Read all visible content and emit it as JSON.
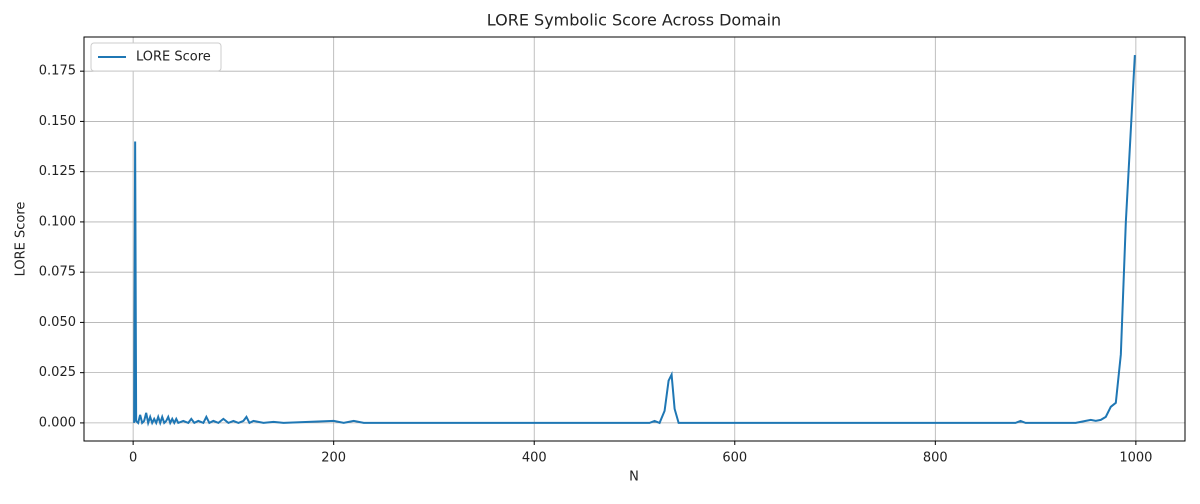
{
  "chart_data": {
    "type": "line",
    "title": "LORE Symbolic Score Across Domain",
    "x_label": "N",
    "y_label": "LORE Score",
    "x": [
      1,
      2,
      3,
      5,
      7,
      9,
      11,
      13,
      15,
      17,
      19,
      21,
      23,
      25,
      27,
      29,
      31,
      33,
      35,
      37,
      39,
      41,
      43,
      45,
      50,
      55,
      58,
      61,
      65,
      70,
      73,
      76,
      80,
      85,
      90,
      95,
      100,
      105,
      110,
      113,
      116,
      120,
      130,
      140,
      150,
      200,
      210,
      220,
      230,
      300,
      400,
      515,
      520,
      525,
      530,
      534,
      537,
      540,
      544,
      550,
      600,
      800,
      880,
      885,
      890,
      940,
      950,
      955,
      960,
      965,
      970,
      975,
      980,
      985,
      990,
      999
    ],
    "series": [
      {
        "name": "LORE Score",
        "color": "#1f77b4",
        "values": [
          0.0,
          0.14,
          0.001,
          0.0,
          0.004,
          0.0,
          0.001,
          0.005,
          0.0,
          0.003,
          0.0,
          0.002,
          0.0,
          0.003,
          0.0,
          0.003,
          0.0,
          0.001,
          0.003,
          0.0,
          0.002,
          0.0,
          0.002,
          0.0,
          0.001,
          0.0,
          0.002,
          0.0,
          0.001,
          0.0,
          0.003,
          0.0,
          0.001,
          0.0,
          0.002,
          0.0,
          0.001,
          0.0,
          0.001,
          0.003,
          0.0,
          0.001,
          0.0,
          0.0005,
          0.0,
          0.001,
          0.0,
          0.001,
          0.0,
          0.0,
          0.0,
          0.0,
          0.001,
          0.0,
          0.006,
          0.021,
          0.024,
          0.007,
          0.0,
          0.0,
          0.0,
          0.0,
          0.0,
          0.001,
          0.0,
          0.0,
          0.001,
          0.0015,
          0.001,
          0.0015,
          0.003,
          0.008,
          0.01,
          0.034,
          0.1,
          0.183
        ]
      }
    ],
    "xlim": [
      -49,
      1049
    ],
    "ylim": [
      -0.009,
      0.192
    ],
    "xticks": [
      0,
      200,
      400,
      600,
      800,
      1000
    ],
    "yticks": [
      {
        "value": 0,
        "label": "0.000"
      },
      {
        "value": 0.025,
        "label": "0.025"
      },
      {
        "value": 0.05,
        "label": "0.050"
      },
      {
        "value": 0.075,
        "label": "0.075"
      },
      {
        "value": 0.1,
        "label": "0.100"
      },
      {
        "value": 0.125,
        "label": "0.125"
      },
      {
        "value": 0.15,
        "label": "0.150"
      },
      {
        "value": 0.175,
        "label": "0.175"
      }
    ],
    "grid": true,
    "legend": "upper-left"
  }
}
